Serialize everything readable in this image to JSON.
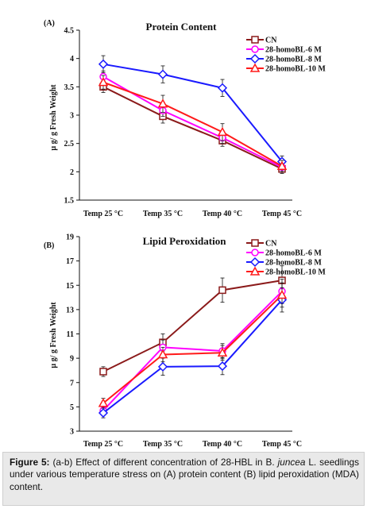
{
  "colors": {
    "CN": "#8b1a1a",
    "BL6": "#ff00ff",
    "BL8": "#1a1aff",
    "BL10": "#ff1a1a",
    "axis": "#111111",
    "caption_bg": "#e9e9e9"
  },
  "chart_data": [
    {
      "panel_label": "(A)",
      "type": "line",
      "title": "Protein Content",
      "ylabel": "µ g/ g Fresh Weight",
      "xlabel": "",
      "categories": [
        "Temp 25 °C",
        "Temp 35 °C",
        "Temp 40 °C",
        "Temp 45 °C"
      ],
      "ylim": [
        1.5,
        4.5
      ],
      "yticks": [
        "1.5",
        "2",
        "2.5",
        "3",
        "3.5",
        "4",
        "4.5"
      ],
      "grid": false,
      "legend_position": "top-right",
      "series": [
        {
          "name": "CN",
          "values": [
            3.5,
            2.98,
            2.55,
            2.05
          ],
          "errors": [
            0.1,
            0.12,
            0.1,
            0.08
          ]
        },
        {
          "name": "28-homoBL-6 M",
          "values": [
            3.68,
            3.08,
            2.6,
            2.08
          ],
          "errors": [
            0.1,
            0.1,
            0.1,
            0.08
          ]
        },
        {
          "name": "28-homoBL-8 M",
          "values": [
            3.9,
            3.72,
            3.48,
            2.18
          ],
          "errors": [
            0.15,
            0.15,
            0.15,
            0.1
          ]
        },
        {
          "name": "28-homoBL-10 M",
          "values": [
            3.58,
            3.2,
            2.7,
            2.1
          ],
          "errors": [
            0.12,
            0.15,
            0.15,
            0.1
          ]
        }
      ]
    },
    {
      "panel_label": "(B)",
      "type": "line",
      "title": "Lipid Peroxidation",
      "ylabel": "µ g/ g Fresh Weight",
      "xlabel": "",
      "categories": [
        "Temp 25 °C",
        "Temp 35 °C",
        "Temp 40 °C",
        "Temp 45 °C"
      ],
      "ylim": [
        3,
        19
      ],
      "yticks": [
        "3",
        "5",
        "7",
        "9",
        "11",
        "13",
        "15",
        "17",
        "19"
      ],
      "grid": false,
      "legend_position": "top-right",
      "series": [
        {
          "name": "CN",
          "values": [
            7.9,
            10.3,
            14.6,
            15.4
          ],
          "errors": [
            0.4,
            0.7,
            1.0,
            1.2
          ]
        },
        {
          "name": "28-homoBL-6 M",
          "values": [
            4.7,
            9.9,
            9.6,
            14.5
          ],
          "errors": [
            0.4,
            0.6,
            0.6,
            1.0
          ]
        },
        {
          "name": "28-homoBL-8 M",
          "values": [
            4.5,
            8.3,
            8.35,
            13.8
          ],
          "errors": [
            0.4,
            0.7,
            0.7,
            1.0
          ]
        },
        {
          "name": "28-homoBL-10 M",
          "values": [
            5.3,
            9.3,
            9.45,
            14.2
          ],
          "errors": [
            0.4,
            0.6,
            0.6,
            1.0
          ]
        }
      ]
    }
  ],
  "caption": {
    "label": "Figure 5:",
    "text_before_italic": "(a-b) Effect of different concentration of 28-HBL in B.",
    "italic": "juncea",
    "text_after_italic": "L. seedlings under various temperature stress on (A) protein content (B) lipid peroxidation (MDA) content."
  }
}
